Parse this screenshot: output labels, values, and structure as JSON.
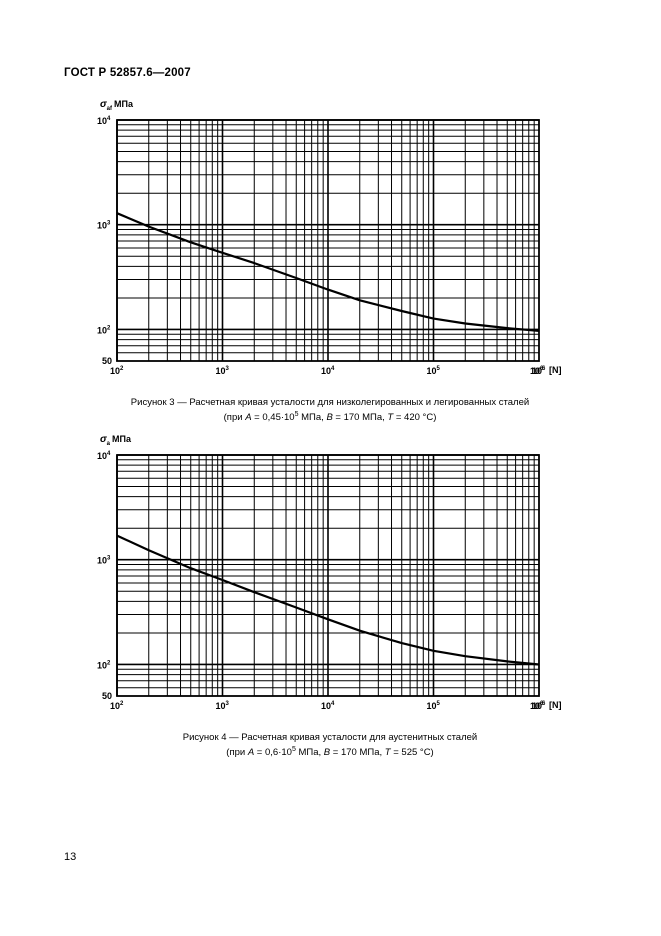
{
  "header": {
    "title": "ГОСТ Р 52857.6—2007"
  },
  "page": {
    "number": "13"
  },
  "figures": [
    {
      "caption_line1": "Рисунок 3  —  Расчетная кривая усталости для низколегированных и легированных сталей",
      "caption_line2": {
        "p1": "(при ",
        "a_var": "A",
        "p2": " = 0,45·10",
        "a_exp": "5",
        "p3": " МПа, ",
        "b_var": "B",
        "p4": " = 170 МПа, ",
        "t_var": "T",
        "p5": " = 420 °С)"
      }
    },
    {
      "caption_line1": "Рисунок 4  —  Расчетная кривая усталости для аустенитных сталей",
      "caption_line2": {
        "p1": "(при ",
        "a_var": "A",
        "p2": " = 0,6·10",
        "a_exp": "5",
        "p3": " МПа, ",
        "b_var": "B",
        "p4": " = 170 МПа, ",
        "t_var": "T",
        "p5": " = 525 °С)"
      }
    }
  ],
  "chart_data": [
    {
      "type": "line",
      "title": "",
      "ylabel_symbol": "σ",
      "ylabel_sub": "af",
      "ylabel_unit": "МПа",
      "xlabel": "[N]",
      "x_scale": "log",
      "y_scale": "log",
      "xlim": [
        100,
        1000000
      ],
      "ylim": [
        50,
        10000
      ],
      "x_ticks": [
        {
          "base": "10",
          "exp": "2"
        },
        {
          "base": "10",
          "exp": "3"
        },
        {
          "base": "10",
          "exp": "4"
        },
        {
          "base": "10",
          "exp": "5"
        },
        {
          "base": "10",
          "exp": "6"
        }
      ],
      "y_ticks": [
        {
          "base": "10",
          "exp": "4",
          "value": 10000
        },
        {
          "base": "10",
          "exp": "3",
          "value": 1000
        },
        {
          "base": "10",
          "exp": "2",
          "value": 100
        }
      ],
      "y_min_label": "50",
      "grid": true,
      "series": [
        {
          "x": [
            100,
            200,
            500,
            1000,
            2000,
            5000,
            10000,
            20000,
            50000,
            100000,
            200000,
            500000,
            1000000
          ],
          "y": [
            1290,
            960,
            680,
            540,
            430,
            310,
            240,
            190,
            150,
            127,
            114,
            103,
            97
          ]
        }
      ]
    },
    {
      "type": "line",
      "title": "",
      "ylabel_symbol": "σ",
      "ylabel_sub": "a",
      "ylabel_unit": "МПа",
      "xlabel": "[N]",
      "x_scale": "log",
      "y_scale": "log",
      "xlim": [
        100,
        1000000
      ],
      "ylim": [
        50,
        10000
      ],
      "x_ticks": [
        {
          "base": "10",
          "exp": "2"
        },
        {
          "base": "10",
          "exp": "3"
        },
        {
          "base": "10",
          "exp": "4"
        },
        {
          "base": "10",
          "exp": "5"
        },
        {
          "base": "10",
          "exp": "6"
        }
      ],
      "y_ticks": [
        {
          "base": "10",
          "exp": "4",
          "value": 10000
        },
        {
          "base": "10",
          "exp": "3",
          "value": 1000
        },
        {
          "base": "10",
          "exp": "2",
          "value": 100
        }
      ],
      "y_min_label": "50",
      "grid": true,
      "series": [
        {
          "x": [
            100,
            200,
            500,
            1000,
            2000,
            5000,
            10000,
            20000,
            50000,
            100000,
            200000,
            500000,
            1000000
          ],
          "y": [
            1700,
            1230,
            830,
            640,
            490,
            350,
            270,
            210,
            160,
            135,
            120,
            107,
            100
          ]
        }
      ]
    }
  ]
}
